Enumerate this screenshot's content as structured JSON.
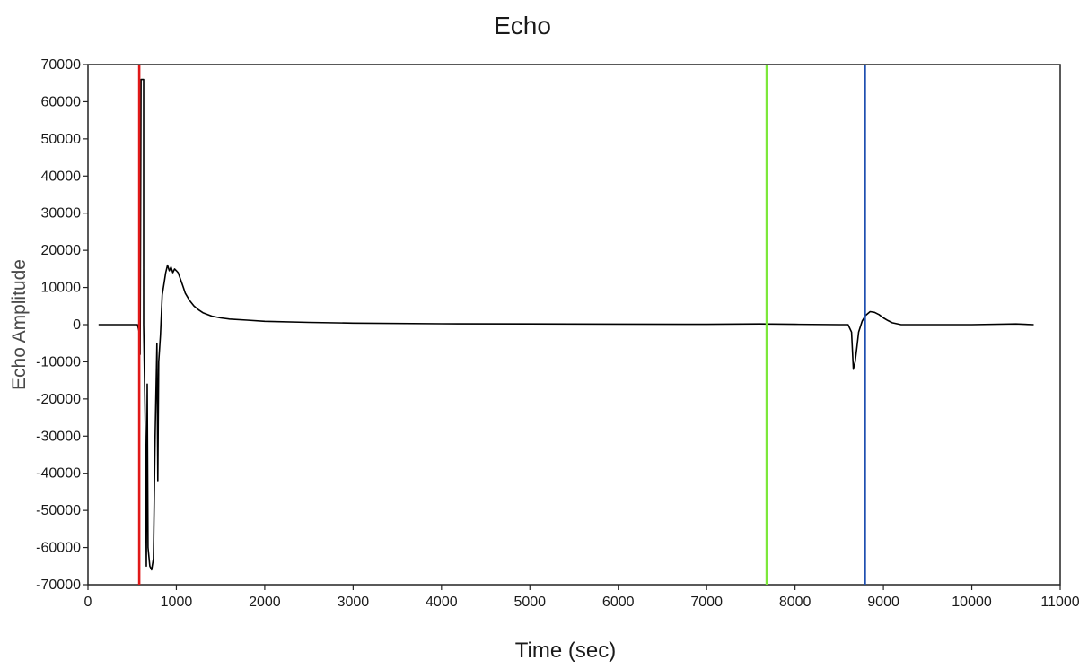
{
  "chart_data": {
    "type": "line",
    "title": "Echo",
    "xlabel": "Time (sec)",
    "ylabel": "Echo Amplitude",
    "xlim": [
      0,
      11000
    ],
    "ylim": [
      -70000,
      70000
    ],
    "x_ticks": [
      0,
      1000,
      2000,
      3000,
      4000,
      5000,
      6000,
      7000,
      8000,
      9000,
      10000,
      11000
    ],
    "y_ticks": [
      70000,
      60000,
      50000,
      40000,
      30000,
      20000,
      10000,
      0,
      -10000,
      -20000,
      -30000,
      -40000,
      -50000,
      -60000,
      -70000
    ],
    "grid": false,
    "series": [
      {
        "color": "#000000",
        "x": [
          120,
          560,
          580,
          590,
          600,
          600,
          630,
          630,
          650,
          660,
          670,
          680,
          700,
          720,
          740,
          760,
          780,
          790,
          800,
          820,
          840,
          860,
          880,
          900,
          920,
          940,
          960,
          980,
          1000,
          1020,
          1050,
          1080,
          1100,
          1150,
          1200,
          1250,
          1300,
          1400,
          1500,
          1600,
          1800,
          2000,
          2500,
          3000,
          4000,
          5000,
          6000,
          7000,
          7600,
          8000,
          8500,
          8600,
          8640,
          8650,
          8660,
          8680,
          8700,
          8720,
          8760,
          8800,
          8850,
          8900,
          8950,
          9000,
          9050,
          9100,
          9200,
          9300,
          9400,
          9600,
          10000,
          10500,
          10700
        ],
        "y": [
          0,
          0,
          -2000,
          -8000,
          66000,
          66000,
          66000,
          0,
          -30000,
          -65000,
          -16000,
          -60000,
          -65000,
          -66000,
          -63000,
          -30000,
          -5000,
          -42000,
          -10000,
          -3000,
          8000,
          11000,
          14000,
          16000,
          14500,
          15500,
          14000,
          15000,
          14500,
          14000,
          12000,
          10000,
          8500,
          6500,
          5000,
          4000,
          3200,
          2300,
          1800,
          1500,
          1200,
          900,
          600,
          400,
          250,
          200,
          150,
          100,
          200,
          100,
          0,
          0,
          -2000,
          -7000,
          -12000,
          -10000,
          -6000,
          -2000,
          1000,
          2500,
          3500,
          3300,
          2700,
          1800,
          1100,
          500,
          0,
          0,
          0,
          0,
          0,
          200,
          0
        ]
      },
      {
        "color": "#e01818",
        "x": [
          580,
          580
        ],
        "y": [
          70000,
          -70000
        ]
      },
      {
        "color": "#7ce83a",
        "x": [
          7680,
          7680
        ],
        "y": [
          70000,
          -70000
        ]
      },
      {
        "color": "#1f4fb0",
        "x": [
          8790,
          8790
        ],
        "y": [
          70000,
          -70000
        ]
      }
    ]
  }
}
